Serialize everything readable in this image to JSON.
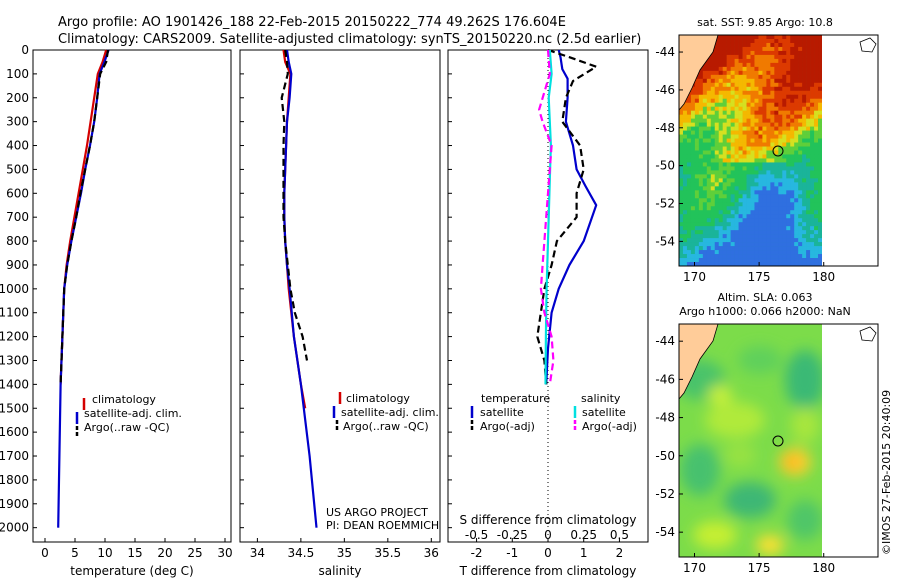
{
  "header": {
    "line1": "Argo profile: AO 1901426_188 22-Feb-2015 20150222_774 49.262S 176.604E",
    "line2": "Climatology: CARS2009. Satellite-adjusted climatology: synTS_20150220.nc (2.5d earlier)"
  },
  "credits": {
    "project": "US ARGO PROJECT",
    "pi": "PI: DEAN ROEMMICH",
    "stamp": "©IMOS 27-Feb-2015 20:40:09"
  },
  "colors": {
    "climatology": "#d40000",
    "satellite": "#0000cc",
    "argo": "#000000",
    "sal_satellite": "#00e0e0",
    "sal_argo": "#ff00ff",
    "land": "#ffcc99"
  },
  "chart_data": [
    {
      "type": "line",
      "id": "temperature",
      "xlabel": "temperature (deg C)",
      "ylabel": "",
      "xlim": [
        -2,
        31
      ],
      "ylim": [
        0,
        2060
      ],
      "xticks": [
        0,
        5,
        10,
        15,
        20,
        25,
        30
      ],
      "yticks": [
        0,
        100,
        200,
        300,
        400,
        500,
        600,
        700,
        800,
        900,
        1000,
        1100,
        1200,
        1300,
        1400,
        1500,
        1600,
        1700,
        1800,
        1900,
        2000
      ],
      "legend": [
        "climatology",
        "satellite-adj. clim.",
        "Argo(..raw -QC)"
      ],
      "series": [
        {
          "name": "climatology",
          "color": "#d40000",
          "style": "solid",
          "x": [
            10.2,
            9.6,
            8.8,
            8.2,
            7.6,
            7.0,
            6.3,
            5.6,
            4.9,
            4.2,
            3.6,
            3.2,
            2.9,
            2.6
          ],
          "y": [
            0,
            50,
            100,
            200,
            300,
            400,
            500,
            600,
            700,
            800,
            900,
            1000,
            1200,
            1400
          ]
        },
        {
          "name": "satellite-adj. clim.",
          "color": "#0000cc",
          "style": "solid",
          "x": [
            10.6,
            9.9,
            9.1,
            8.7,
            8.2,
            7.5,
            6.7,
            6.0,
            5.2,
            4.4,
            3.7,
            3.2,
            2.9,
            2.6,
            2.4,
            2.2
          ],
          "y": [
            0,
            50,
            100,
            200,
            300,
            400,
            500,
            600,
            700,
            800,
            900,
            1000,
            1200,
            1400,
            1700,
            2000
          ]
        },
        {
          "name": "Argo(..raw -QC)",
          "color": "#000000",
          "style": "dashed",
          "x": [
            10.5,
            10.2,
            9.2,
            8.7,
            8.2,
            7.5,
            6.7,
            5.9,
            5.2,
            4.4,
            3.7,
            3.2,
            2.9,
            2.6
          ],
          "y": [
            0,
            50,
            100,
            200,
            300,
            400,
            500,
            600,
            700,
            800,
            900,
            1000,
            1200,
            1400
          ]
        }
      ]
    },
    {
      "type": "line",
      "id": "salinity",
      "xlabel": "salinity",
      "ylabel": "",
      "xlim": [
        33.8,
        36.1
      ],
      "ylim": [
        0,
        2060
      ],
      "xticks": [
        34,
        34.5,
        35,
        35.5,
        36
      ],
      "xticklabels": [
        "34",
        "34.5",
        "35",
        "35.5",
        "36"
      ],
      "legend": [
        "climatology",
        "satellite-adj. clim.",
        "Argo(..raw -QC)"
      ],
      "series": [
        {
          "name": "climatology",
          "color": "#d40000",
          "style": "solid",
          "x": [
            34.3,
            34.32,
            34.38,
            34.36,
            34.34,
            34.33,
            34.32,
            34.31,
            34.31,
            34.32,
            34.34,
            34.36,
            34.42,
            34.5,
            34.55
          ],
          "y": [
            0,
            50,
            100,
            200,
            300,
            400,
            500,
            600,
            700,
            800,
            900,
            1000,
            1200,
            1400,
            1500
          ]
        },
        {
          "name": "satellite-adj. clim.",
          "color": "#0000cc",
          "style": "solid",
          "x": [
            34.34,
            34.36,
            34.39,
            34.37,
            34.34,
            34.33,
            34.32,
            34.31,
            34.31,
            34.32,
            34.34,
            34.37,
            34.42,
            34.5,
            34.6,
            34.68
          ],
          "y": [
            0,
            50,
            100,
            200,
            300,
            400,
            500,
            600,
            700,
            800,
            900,
            1000,
            1200,
            1400,
            1700,
            2000
          ]
        },
        {
          "name": "Argo(..raw -QC)",
          "color": "#000000",
          "style": "dashed",
          "x": [
            34.32,
            34.34,
            34.35,
            34.28,
            34.31,
            34.3,
            34.3,
            34.3,
            34.32,
            34.35,
            34.38,
            34.43,
            34.52,
            34.57
          ],
          "y": [
            0,
            50,
            100,
            200,
            300,
            400,
            600,
            700,
            800,
            900,
            1000,
            1100,
            1200,
            1300
          ]
        }
      ]
    },
    {
      "type": "line",
      "id": "differences",
      "xlabel": "T difference from climatology",
      "xlabel_top": "S difference from climatology",
      "xlim": [
        -2.8,
        2.8
      ],
      "ylim": [
        0,
        2060
      ],
      "xticks": [
        -2,
        -1,
        0,
        1,
        2
      ],
      "xticklabels": [
        "-2",
        "-1",
        "0",
        "1",
        "2"
      ],
      "sticks": [
        -0.5,
        -0.25,
        0,
        0.25,
        0.5
      ],
      "sticklabels": [
        "-0.5",
        "-0.25",
        "0",
        "0.25",
        "0.5"
      ],
      "legend_left_title": "temperature",
      "legend_right_title": "salinity",
      "legend_left": [
        "satellite",
        "Argo(-adj)"
      ],
      "legend_right": [
        "satellite",
        "Argo(-adj)"
      ],
      "series": [
        {
          "name": "temperature satellite",
          "color": "#0000cc",
          "style": "solid",
          "x": [
            0.3,
            0.35,
            0.4,
            0.55,
            0.55,
            0.5,
            0.7,
            0.8,
            1.05,
            1.35,
            1.0,
            0.6,
            0.3,
            0.1,
            0.0,
            -0.05
          ],
          "y": [
            0,
            30,
            80,
            120,
            200,
            300,
            400,
            500,
            570,
            650,
            800,
            900,
            1000,
            1100,
            1250,
            1400
          ]
        },
        {
          "name": "temperature Argo",
          "color": "#000000",
          "style": "dashed",
          "x": [
            0.0,
            0.6,
            1.35,
            0.7,
            0.5,
            0.4,
            0.9,
            1.0,
            0.8,
            0.8,
            0.25,
            0.1,
            -0.1,
            -0.3,
            -0.1,
            -0.05
          ],
          "y": [
            0,
            30,
            70,
            130,
            200,
            300,
            400,
            500,
            600,
            700,
            800,
            900,
            1000,
            1200,
            1300,
            1400
          ]
        },
        {
          "name": "salinity satellite",
          "color": "#00e0e0",
          "style": "solid",
          "x": [
            0.05,
            0.1,
            0.02,
            0.05,
            0.08,
            0.06,
            0.04,
            0.02,
            0.0,
            -0.02,
            -0.04,
            -0.05,
            -0.06,
            -0.07
          ],
          "y": [
            0,
            100,
            200,
            300,
            400,
            500,
            600,
            700,
            800,
            900,
            1000,
            1100,
            1200,
            1400
          ]
        },
        {
          "name": "salinity Argo",
          "color": "#ff00ff",
          "style": "dashed",
          "x": [
            0.0,
            0.05,
            -0.25,
            -0.15,
            0.1,
            0.05,
            0.0,
            -0.05,
            -0.1,
            -0.15,
            -0.2,
            -0.1,
            0.1,
            0.15,
            0.05
          ],
          "y": [
            0,
            100,
            250,
            300,
            400,
            500,
            600,
            700,
            800,
            900,
            1000,
            1100,
            1200,
            1300,
            1400
          ]
        }
      ]
    },
    {
      "type": "heatmap",
      "id": "sst_map",
      "title": "sat. SST: 9.85 Argo: 10.8",
      "xlim": [
        168.8,
        184.2
      ],
      "ylim": [
        -55.3,
        -43.1
      ],
      "xticks": [
        170,
        175,
        180
      ],
      "yticks": [
        -44,
        -46,
        -48,
        -50,
        -52,
        -54
      ],
      "marker": {
        "lon": 176.604,
        "lat": -49.262
      }
    },
    {
      "type": "heatmap",
      "id": "sla_map",
      "title": "Altim. SLA: 0.063",
      "subtitle": "Argo h1000: 0.066 h2000: NaN",
      "xlim": [
        168.8,
        184.2
      ],
      "ylim": [
        -55.3,
        -43.1
      ],
      "xticks": [
        170,
        175,
        180
      ],
      "yticks": [
        -44,
        -46,
        -48,
        -50,
        -52,
        -54
      ],
      "marker": {
        "lon": 176.604,
        "lat": -49.262
      }
    }
  ]
}
